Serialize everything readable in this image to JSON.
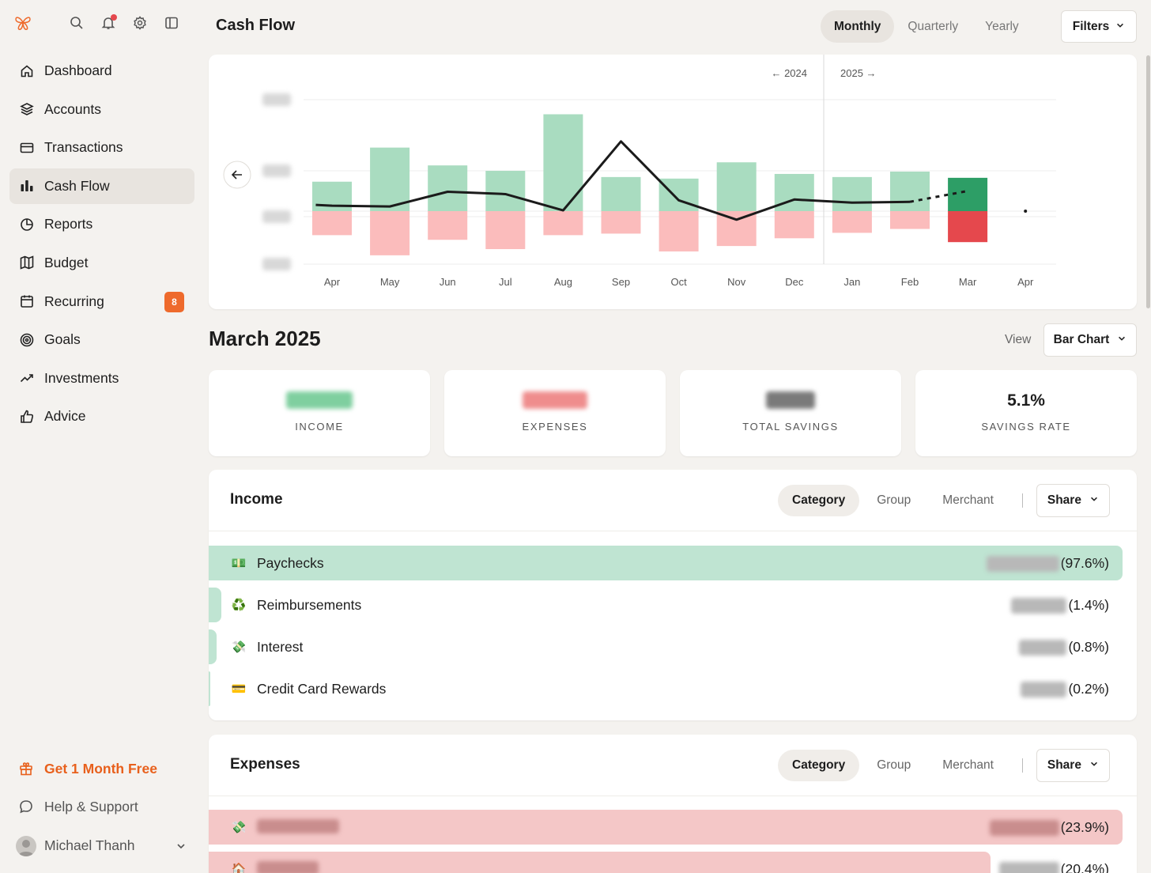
{
  "app": {
    "page_title": "Cash Flow"
  },
  "sidebar": {
    "items": [
      {
        "label": "Dashboard",
        "icon": "home-icon"
      },
      {
        "label": "Accounts",
        "icon": "layers-icon"
      },
      {
        "label": "Transactions",
        "icon": "card-icon"
      },
      {
        "label": "Cash Flow",
        "icon": "bar-chart-icon",
        "active": true
      },
      {
        "label": "Reports",
        "icon": "pie-chart-icon"
      },
      {
        "label": "Budget",
        "icon": "map-icon"
      },
      {
        "label": "Recurring",
        "icon": "calendar-icon",
        "badge": "8"
      },
      {
        "label": "Goals",
        "icon": "target-icon"
      },
      {
        "label": "Investments",
        "icon": "trend-up-icon"
      },
      {
        "label": "Advice",
        "icon": "thumbs-up-icon"
      }
    ],
    "promo_label": "Get 1 Month Free",
    "help_label": "Help & Support",
    "user_name": "Michael Thanh"
  },
  "header": {
    "period_tabs": [
      "Monthly",
      "Quarterly",
      "Yearly"
    ],
    "active_period": "Monthly",
    "filters_label": "Filters"
  },
  "chart": {
    "prev_year_label": "← 2024",
    "next_year_label": "2025 →"
  },
  "chart_data": {
    "type": "bar",
    "categories": [
      "Apr",
      "May",
      "Jun",
      "Jul",
      "Aug",
      "Sep",
      "Oct",
      "Nov",
      "Dec",
      "Jan",
      "Feb",
      "Mar",
      "Apr"
    ],
    "series": [
      {
        "values": [
          3.8,
          8.2,
          5.9,
          5.2,
          12.5,
          4.4,
          4.2,
          6.3,
          4.8,
          4.4,
          5.1,
          4.3,
          null
        ]
      },
      {
        "values": [
          -3.1,
          -5.7,
          -3.7,
          -4.9,
          -3.1,
          -2.9,
          -5.2,
          -4.5,
          -3.5,
          -2.8,
          -2.3,
          -4.0,
          null
        ]
      },
      {
        "type": "line",
        "values": [
          0.7,
          0.6,
          2.5,
          2.2,
          0.1,
          9.0,
          1.4,
          -1.1,
          1.5,
          1.1,
          1.2,
          2.6,
          0.0
        ]
      }
    ],
    "current_month_colors": {
      "income": "#2d9e66",
      "expenses": "#e5484d"
    },
    "colors": {
      "income": "#a9dcc0",
      "expenses": "#fbbcbc",
      "line": "#1b1b1b"
    },
    "year_divider_between": [
      "Dec",
      "Jan"
    ],
    "grid": true,
    "yaxis_labels_blurred": true
  },
  "summary": {
    "month_title": "March 2025",
    "view_label": "View",
    "view_value": "Bar Chart",
    "stats": [
      {
        "label": "INCOME",
        "value": "",
        "color": "#4caf7d"
      },
      {
        "label": "EXPENSES",
        "value": "",
        "color": "#e5484d"
      },
      {
        "label": "TOTAL SAVINGS",
        "value": "",
        "color": "#333333"
      },
      {
        "label": "SAVINGS RATE",
        "value": "5.1%",
        "color": "#1d1d1d"
      }
    ]
  },
  "income": {
    "title": "Income",
    "tabs": [
      "Category",
      "Group",
      "Merchant"
    ],
    "active_tab": "Category",
    "share_label": "Share",
    "rows": [
      {
        "name": "Paychecks",
        "emoji": "💵",
        "pct": "(97.6%)",
        "share": 0.976
      },
      {
        "name": "Reimbursements",
        "emoji": "♻️",
        "pct": "(1.4%)",
        "share": 0.014
      },
      {
        "name": "Interest",
        "emoji": "💸",
        "pct": "(0.8%)",
        "share": 0.008
      },
      {
        "name": "Credit Card Rewards",
        "emoji": "💳",
        "pct": "(0.2%)",
        "share": 0.002
      }
    ]
  },
  "expenses": {
    "title": "Expenses",
    "tabs": [
      "Category",
      "Group",
      "Merchant"
    ],
    "active_tab": "Category",
    "share_label": "Share",
    "rows": [
      {
        "name": "",
        "emoji": "💸",
        "pct": "(23.9%)",
        "share": 0.239
      },
      {
        "name": "",
        "emoji": "🏠",
        "pct": "(20.4%)",
        "share": 0.204
      }
    ]
  }
}
